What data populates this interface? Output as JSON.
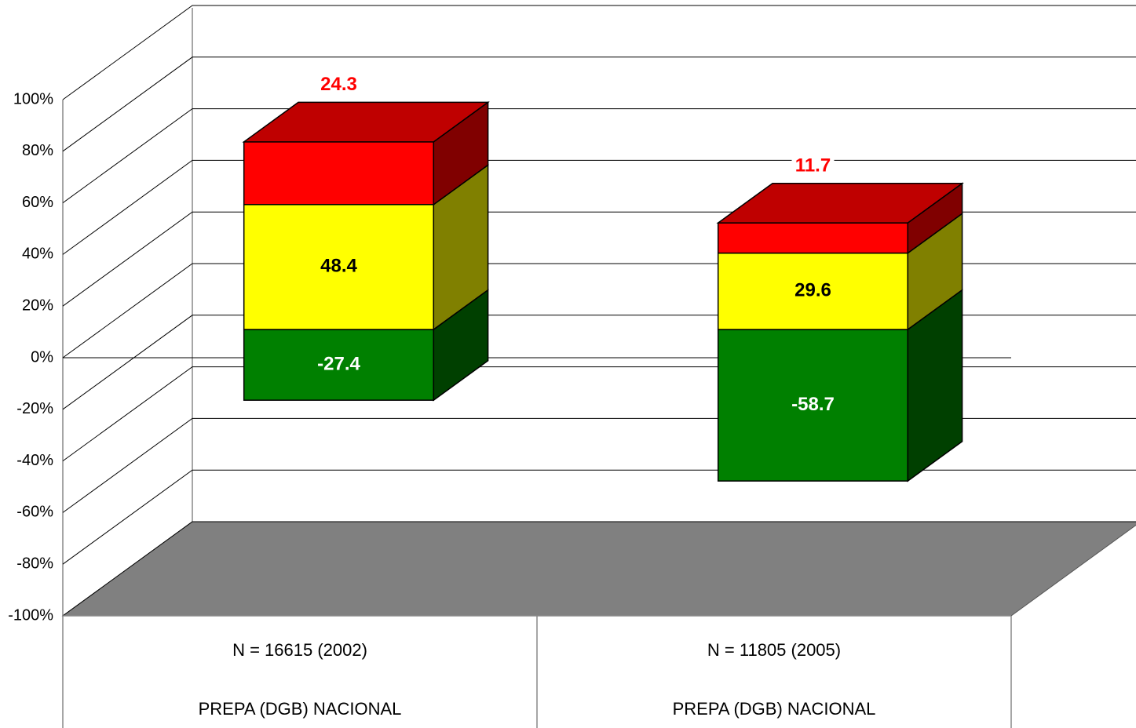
{
  "chart_data": {
    "type": "bar",
    "stacked": true,
    "categories": [
      "N = 16615 (2002)",
      "N = 11805 (2005)"
    ],
    "category_groups": [
      "PREPA (DGB) NACIONAL",
      "PREPA (DGB) NACIONAL"
    ],
    "series": [
      {
        "color": "#008000",
        "label_color": "#ffffff",
        "values": [
          -27.4,
          -58.7
        ]
      },
      {
        "color": "#ffff00",
        "label_color": "#000000",
        "values": [
          48.4,
          29.6
        ]
      },
      {
        "color": "#ff0000",
        "label_color": "#ff0000",
        "values": [
          24.3,
          11.7
        ]
      }
    ],
    "ylim": [
      -100,
      100
    ],
    "yticks": [
      {
        "value": -100,
        "label": "-100%"
      },
      {
        "value": -80,
        "label": "-80%"
      },
      {
        "value": -60,
        "label": "-60%"
      },
      {
        "value": -40,
        "label": "-40%"
      },
      {
        "value": -20,
        "label": "-20%"
      },
      {
        "value": 0,
        "label": "0%"
      },
      {
        "value": 20,
        "label": "20%"
      },
      {
        "value": 40,
        "label": "40%"
      },
      {
        "value": 60,
        "label": "60%"
      },
      {
        "value": 80,
        "label": "80%"
      },
      {
        "value": 100,
        "label": "100%"
      }
    ],
    "grid": true
  }
}
